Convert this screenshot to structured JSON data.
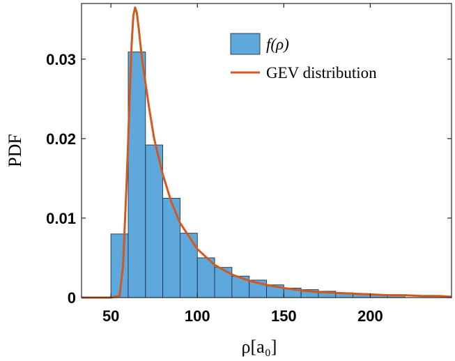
{
  "chart_data": {
    "type": "bar",
    "xlabel": "ρ[a₀]",
    "ylabel": "PDF",
    "xlim": [
      33,
      247
    ],
    "ylim": [
      0,
      0.037
    ],
    "xticks": [
      {
        "value": 50,
        "label": "50"
      },
      {
        "value": 100,
        "label": "100"
      },
      {
        "value": 150,
        "label": "150"
      },
      {
        "value": 200,
        "label": "200"
      }
    ],
    "yticks": [
      {
        "value": 0,
        "label": "0"
      },
      {
        "value": 0.01,
        "label": "0.01"
      },
      {
        "value": 0.02,
        "label": "0.02"
      },
      {
        "value": 0.03,
        "label": "0.03"
      }
    ],
    "grid": false,
    "legend_position": "top-right",
    "colors": {
      "bar_fill": "#5fa8dc",
      "bar_edge": "#1f3347",
      "line": "#d2581e"
    },
    "series": [
      {
        "name": "f(ρ)",
        "kind": "histogram",
        "bin_edges": [
          50,
          60,
          70,
          80,
          90,
          100,
          110,
          120,
          130,
          140,
          150,
          160,
          170,
          180,
          190,
          200,
          210,
          220
        ],
        "values": [
          0.008,
          0.0309,
          0.0192,
          0.0125,
          0.0081,
          0.005,
          0.0038,
          0.0027,
          0.0022,
          0.0016,
          0.0012,
          0.001,
          0.0008,
          0.0006,
          0.0005,
          0.0004,
          0.0003
        ]
      },
      {
        "name": "GEV distribution",
        "kind": "line",
        "x": [
          33,
          50,
          55,
          57,
          59,
          60,
          61,
          62,
          63,
          64,
          65,
          66,
          67,
          68,
          70,
          72,
          75,
          80,
          85,
          90,
          100,
          110,
          120,
          130,
          140,
          150,
          160,
          170,
          180,
          190,
          200,
          210,
          220,
          230,
          240,
          247
        ],
        "y": [
          0,
          0,
          0.0002,
          0.004,
          0.014,
          0.02,
          0.0262,
          0.032,
          0.0355,
          0.0365,
          0.0358,
          0.034,
          0.032,
          0.03,
          0.027,
          0.024,
          0.02,
          0.0155,
          0.012,
          0.0094,
          0.0061,
          0.0041,
          0.0029,
          0.0021,
          0.0016,
          0.0012,
          0.0009,
          0.0007,
          0.0006,
          0.0005,
          0.0004,
          0.0003,
          0.0003,
          0.0002,
          0.0002,
          0.0001
        ]
      }
    ]
  }
}
